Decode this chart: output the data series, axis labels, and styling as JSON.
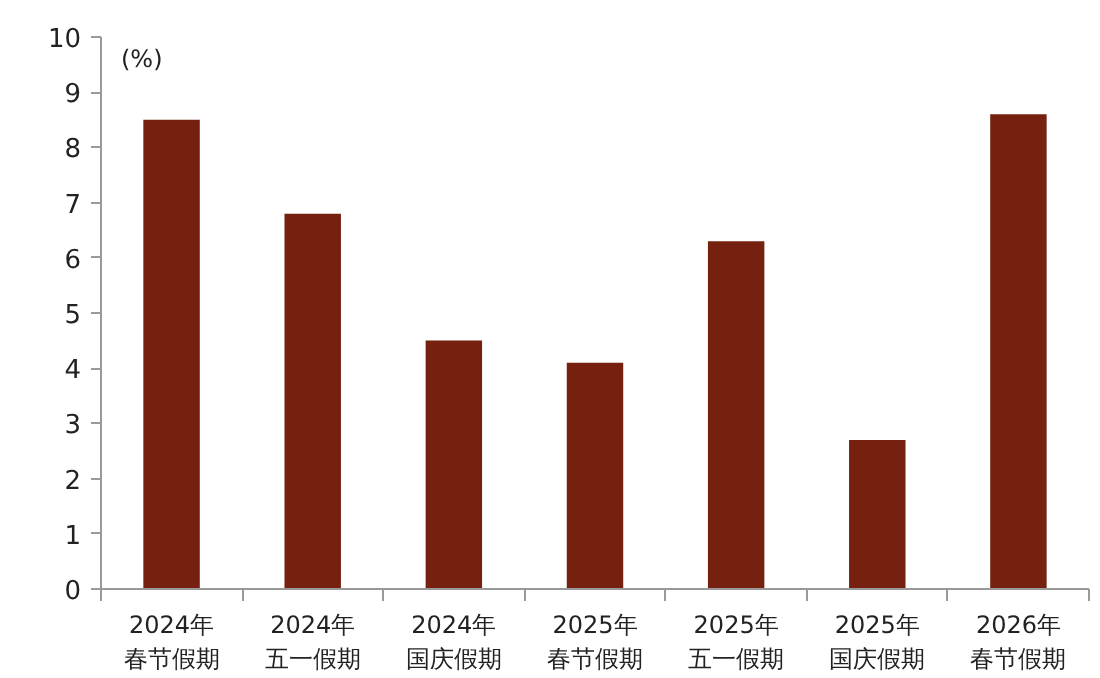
{
  "chart_data": {
    "type": "bar",
    "ylabel": "(%)",
    "categories": [
      "2024年春节假期",
      "2024年五一假期",
      "2024年国庆假期",
      "2025年春节假期",
      "2025年五一假期",
      "2025年国庆假期",
      "2026年春节假期"
    ],
    "values": [
      8.5,
      6.8,
      4.5,
      4.1,
      6.3,
      2.7,
      8.6
    ],
    "color": "#762010",
    "ylim": [
      0,
      10
    ],
    "yticks": [
      0,
      1,
      2,
      3,
      4,
      5,
      6,
      7,
      8,
      9,
      10
    ],
    "grid": false
  }
}
